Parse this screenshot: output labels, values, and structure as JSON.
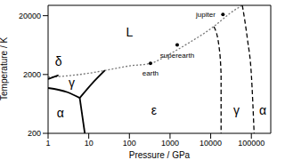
{
  "chart_data": {
    "type": "line",
    "x_label": "Pressure / GPa",
    "y_label": "Temperature / K",
    "log": true,
    "xlim": [
      1,
      300000
    ],
    "ylim": [
      200,
      30000
    ],
    "xticks": [
      1,
      10,
      100,
      1000,
      10000,
      100000
    ],
    "yticks": [
      200,
      2000,
      20000
    ],
    "series": [
      {
        "color": "#777777",
        "line_style": "dotted",
        "x": [
          1,
          3,
          10,
          30,
          100,
          330,
          1000,
          3000,
          10000,
          20000,
          30000,
          60000
        ],
        "values": [
          1800,
          1900,
          2100,
          2400,
          2800,
          3100,
          4500,
          7000,
          12000,
          17500,
          22000,
          30000
        ]
      },
      {
        "color": "#000000",
        "line_style": "solid",
        "x": [
          1,
          1.8
        ],
        "values": [
          1670,
          1950
        ]
      },
      {
        "color": "#000000",
        "line_style": "solid",
        "x": [
          1,
          3,
          6
        ],
        "values": [
          1180,
          1000,
          800
        ]
      },
      {
        "color": "#000000",
        "line_style": "solid",
        "x": [
          6,
          8
        ],
        "values": [
          800,
          200
        ]
      },
      {
        "color": "#000000",
        "line_style": "solid",
        "x": [
          6,
          12,
          25
        ],
        "values": [
          800,
          1400,
          2350
        ]
      },
      {
        "color": "#000000",
        "line_style": "dashed",
        "x": [
          12000,
          16000,
          18000,
          18000
        ],
        "values": [
          13000,
          6000,
          2000,
          200
        ]
      },
      {
        "color": "#000000",
        "line_style": "dashed",
        "x": [
          60000,
          80000,
          100000,
          117000
        ],
        "values": [
          30000,
          8000,
          2000,
          200
        ]
      }
    ],
    "points": [
      {
        "label": "earth",
        "x": 330,
        "y": 3100
      },
      {
        "label": "superearth",
        "x": 1500,
        "y": 6400
      },
      {
        "label": "jupiter",
        "x": 20000,
        "y": 21000
      }
    ],
    "regions": [
      {
        "label": "L",
        "x": 100,
        "y": 10500
      },
      {
        "label": "δ",
        "x": 1.8,
        "y": 3300
      },
      {
        "label": "γ",
        "x": 3.8,
        "y": 1450
      },
      {
        "label": "α",
        "x": 2,
        "y": 450
      },
      {
        "label": "ε",
        "x": 400,
        "y": 500
      },
      {
        "label": "γ",
        "x": 43000,
        "y": 500
      },
      {
        "label": "α",
        "x": 190000,
        "y": 500
      }
    ]
  }
}
